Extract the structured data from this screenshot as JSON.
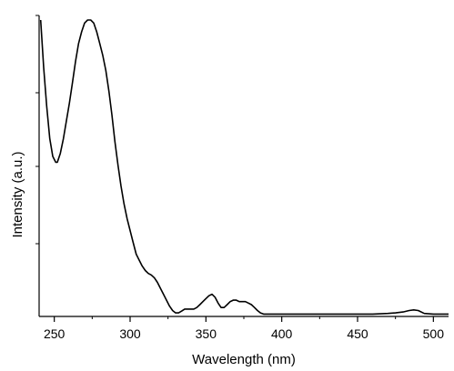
{
  "chart_data": {
    "type": "line",
    "title": "",
    "xlabel": "Wavelength (nm)",
    "ylabel": "Intensity (a.u.)",
    "xlim": [
      240,
      510
    ],
    "ylim": [
      0,
      1.0
    ],
    "grid": false,
    "xticks": [
      250,
      300,
      350,
      400,
      450,
      500
    ],
    "xtick_labels": [
      "250",
      "300",
      "350",
      "400",
      "450",
      "500"
    ],
    "series": [
      {
        "color": "#000000",
        "x": [
          241,
          243,
          245,
          247,
          249,
          251,
          252,
          254,
          256,
          258,
          260,
          262,
          264,
          266,
          268,
          270,
          272,
          274,
          276,
          278,
          280,
          282,
          284,
          286,
          288,
          290,
          292,
          294,
          296,
          298,
          300,
          302,
          304,
          306,
          308,
          310,
          312,
          314,
          316,
          318,
          320,
          322,
          324,
          326,
          328,
          330,
          332,
          334,
          336,
          338,
          340,
          342,
          344,
          346,
          348,
          350,
          352,
          354,
          356,
          358,
          360,
          362,
          364,
          366,
          368,
          370,
          372,
          374,
          376,
          378,
          380,
          382,
          384,
          386,
          388,
          390,
          395,
          400,
          420,
          440,
          460,
          470,
          475,
          480,
          484,
          487,
          490,
          494,
          500,
          510
        ],
        "y": [
          1.0,
          0.84,
          0.71,
          0.6,
          0.54,
          0.52,
          0.52,
          0.55,
          0.6,
          0.66,
          0.72,
          0.79,
          0.86,
          0.92,
          0.96,
          0.99,
          1.0,
          1.0,
          0.99,
          0.96,
          0.92,
          0.88,
          0.83,
          0.76,
          0.68,
          0.59,
          0.51,
          0.44,
          0.38,
          0.33,
          0.29,
          0.25,
          0.21,
          0.19,
          0.17,
          0.155,
          0.145,
          0.14,
          0.13,
          0.115,
          0.095,
          0.075,
          0.055,
          0.035,
          0.02,
          0.012,
          0.012,
          0.018,
          0.025,
          0.025,
          0.025,
          0.025,
          0.03,
          0.04,
          0.05,
          0.06,
          0.07,
          0.075,
          0.065,
          0.045,
          0.03,
          0.03,
          0.04,
          0.05,
          0.055,
          0.055,
          0.05,
          0.05,
          0.05,
          0.045,
          0.04,
          0.03,
          0.02,
          0.012,
          0.008,
          0.008,
          0.008,
          0.008,
          0.008,
          0.008,
          0.008,
          0.01,
          0.012,
          0.015,
          0.02,
          0.022,
          0.02,
          0.01,
          0.008,
          0.008
        ]
      }
    ]
  }
}
